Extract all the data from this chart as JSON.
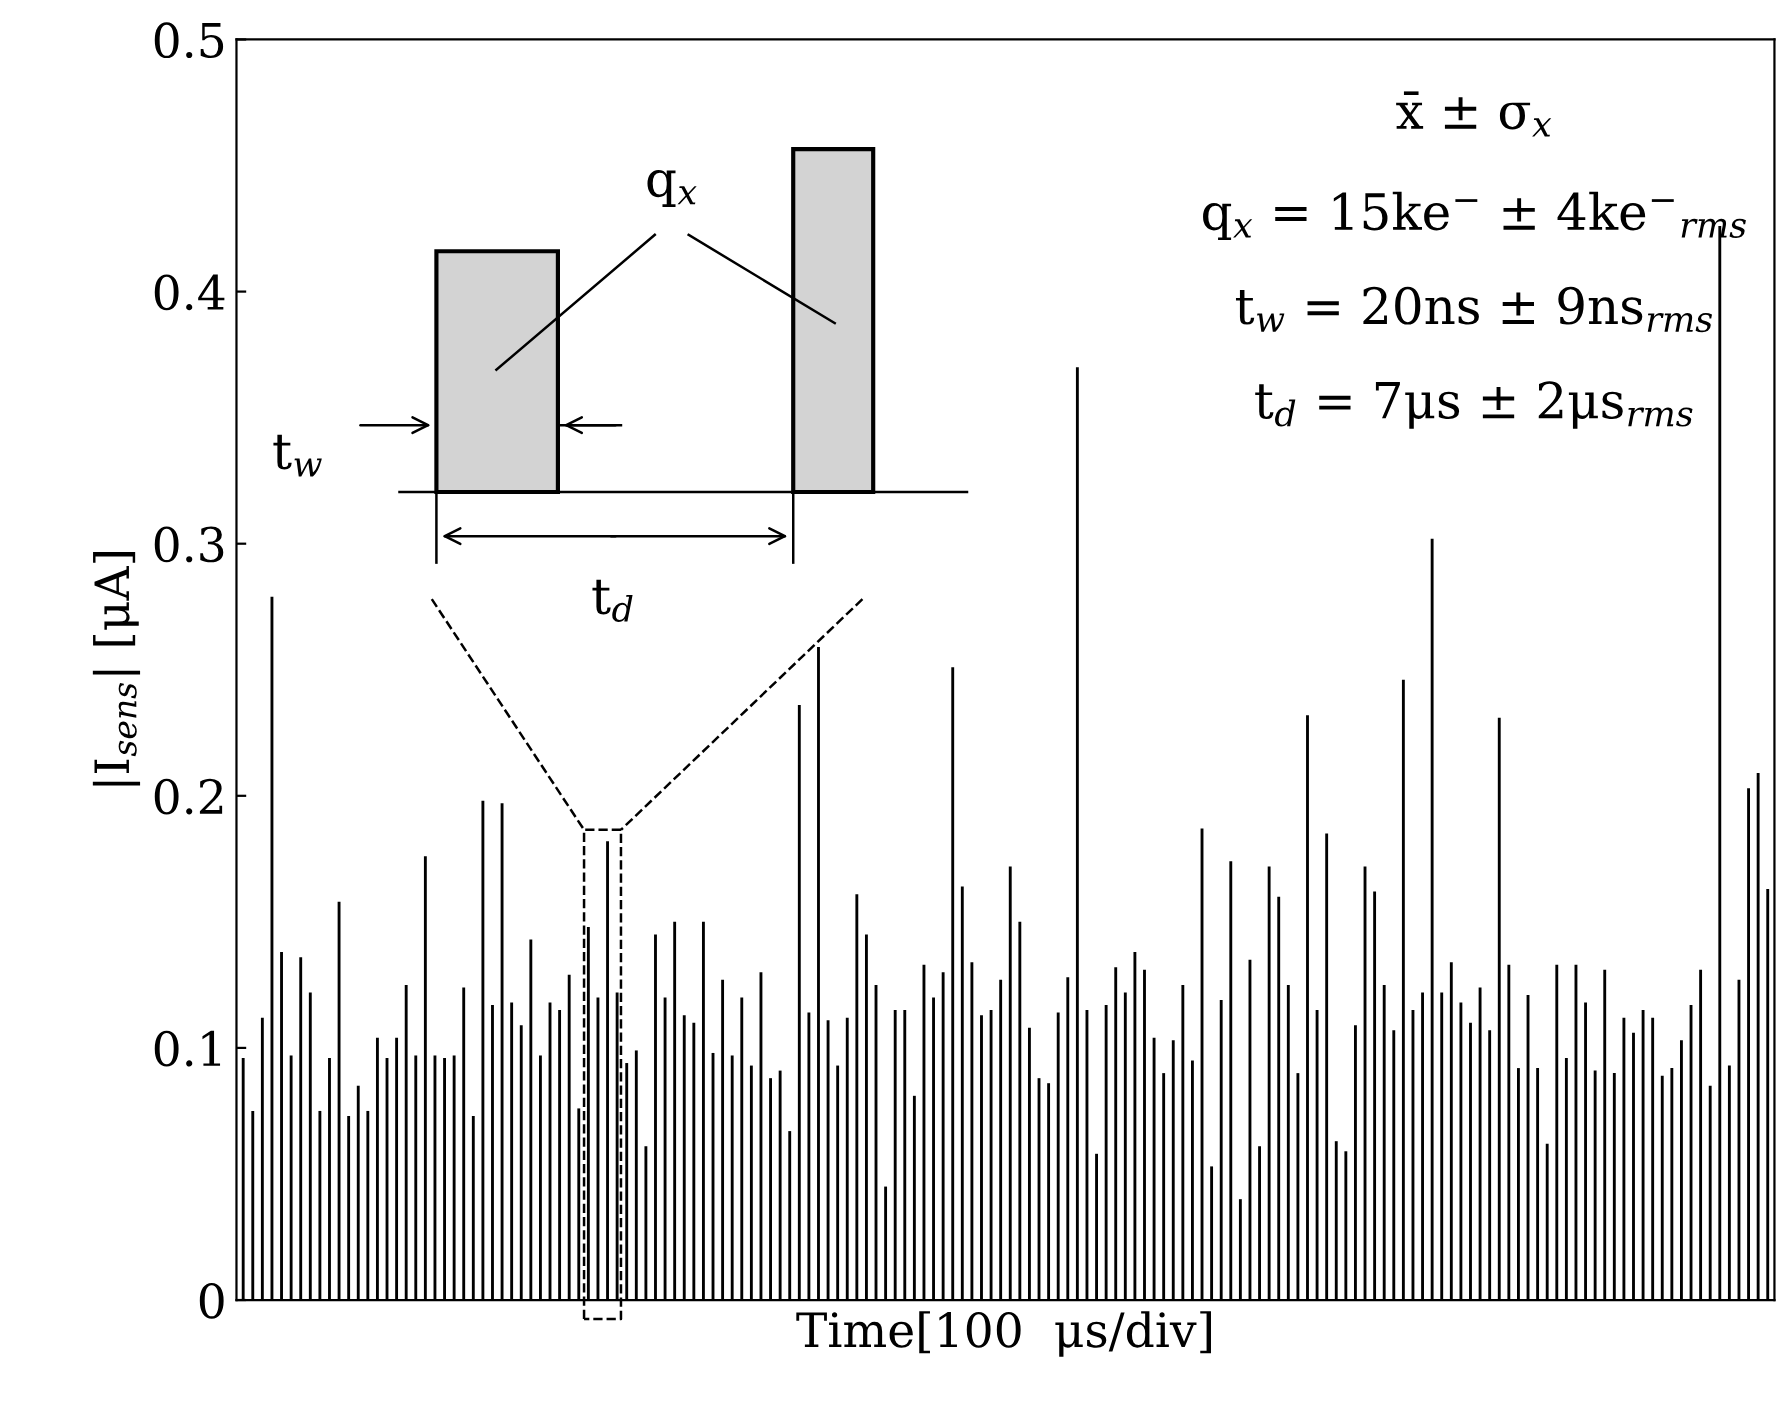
{
  "chart_data": {
    "type": "bar",
    "xlabel": "Time[100  μs/div]",
    "ylabel": "|I$_{sens}$| [μA]",
    "categories": [
      null,
      null,
      null,
      null,
      null,
      null,
      null,
      null,
      null,
      null,
      null,
      null,
      null,
      null,
      null,
      null,
      null,
      null,
      null,
      null,
      null,
      null,
      null,
      null,
      null,
      null,
      null,
      null,
      null,
      null,
      null,
      null,
      null,
      null,
      null,
      null,
      null,
      null,
      null,
      null,
      null,
      null,
      null,
      null,
      null,
      null,
      null,
      null,
      null,
      null,
      null,
      null,
      null,
      null,
      null,
      null,
      null,
      null,
      null,
      null,
      null,
      null,
      null,
      null,
      null,
      null,
      null,
      null,
      null,
      null,
      null,
      null,
      null,
      null,
      null,
      null,
      null,
      null,
      null,
      null,
      null,
      null,
      null,
      null,
      null,
      null,
      null,
      null,
      null,
      null,
      null,
      null,
      null,
      null,
      null,
      null,
      null,
      null,
      null,
      null,
      null,
      null,
      null,
      null,
      null,
      null,
      null,
      null,
      null,
      null,
      null,
      null,
      null,
      null,
      null,
      null,
      null,
      null,
      null,
      null,
      null,
      null,
      null,
      null,
      null,
      null,
      null,
      null,
      null,
      null,
      null,
      null,
      null,
      null,
      null,
      null,
      null,
      null,
      null,
      null,
      null,
      null,
      null,
      null,
      null,
      null,
      null,
      null,
      null,
      null,
      null,
      null,
      null,
      null,
      null,
      null,
      null,
      null,
      null,
      null
    ],
    "values": [
      0.096,
      0.075,
      0.112,
      0.279,
      0.138,
      0.097,
      0.136,
      0.122,
      0.075,
      0.096,
      0.158,
      0.073,
      0.085,
      0.075,
      0.104,
      0.096,
      0.104,
      0.125,
      0.097,
      0.176,
      0.097,
      0.096,
      0.097,
      0.124,
      0.073,
      0.198,
      0.117,
      0.197,
      0.118,
      0.109,
      0.143,
      0.097,
      0.118,
      0.115,
      0.129,
      0.076,
      0.148,
      0.12,
      0.182,
      0.122,
      0.094,
      0.099,
      0.061,
      0.145,
      0.12,
      0.15,
      0.113,
      0.11,
      0.15,
      0.098,
      0.127,
      0.097,
      0.12,
      0.093,
      0.13,
      0.088,
      0.091,
      0.067,
      0.236,
      0.114,
      0.259,
      0.111,
      0.093,
      0.112,
      0.161,
      0.145,
      0.125,
      0.045,
      0.115,
      0.115,
      0.081,
      0.133,
      0.12,
      0.13,
      0.251,
      0.164,
      0.134,
      0.113,
      0.115,
      0.127,
      0.172,
      0.15,
      0.108,
      0.088,
      0.086,
      0.114,
      0.128,
      0.37,
      0.115,
      0.058,
      0.117,
      0.132,
      0.122,
      0.138,
      0.131,
      0.104,
      0.09,
      0.103,
      0.125,
      0.095,
      0.187,
      0.053,
      0.119,
      0.174,
      0.04,
      0.135,
      0.061,
      0.172,
      0.16,
      0.125,
      0.09,
      0.232,
      0.115,
      0.185,
      0.063,
      0.059,
      0.109,
      0.172,
      0.162,
      0.125,
      0.107,
      0.246,
      0.115,
      0.122,
      0.302,
      0.122,
      0.134,
      0.118,
      0.11,
      0.124,
      0.107,
      0.231,
      0.133,
      0.092,
      0.121,
      0.092,
      0.062,
      0.133,
      0.096,
      0.133,
      0.118,
      0.091,
      0.131,
      0.09,
      0.112,
      0.106,
      0.115,
      0.112,
      0.089,
      0.092,
      0.103,
      0.117,
      0.131,
      0.085,
      0.426,
      0.093,
      0.127,
      0.203,
      0.209,
      0.163
    ],
    "color": "#000000",
    "ylim": [
      0,
      0.5
    ],
    "yticks": [
      0,
      0.1,
      0.2,
      0.3,
      0.4,
      0.5
    ],
    "tick_labels": "y",
    "annotations": [
      "q$_{x}$",
      "t$_{w}$",
      "t$_{d}$",
      "x̄ ± σ$_{x}$",
      "q$_{x}$ = 15ke$^{−}$ ± 4ke$^{−}$$_{rms}$",
      "t$_{w}$ = 20ns ± 9ns$_{rms}$",
      "t$_{d}$ = 7μs ± 2μs$_{rms}$"
    ]
  }
}
